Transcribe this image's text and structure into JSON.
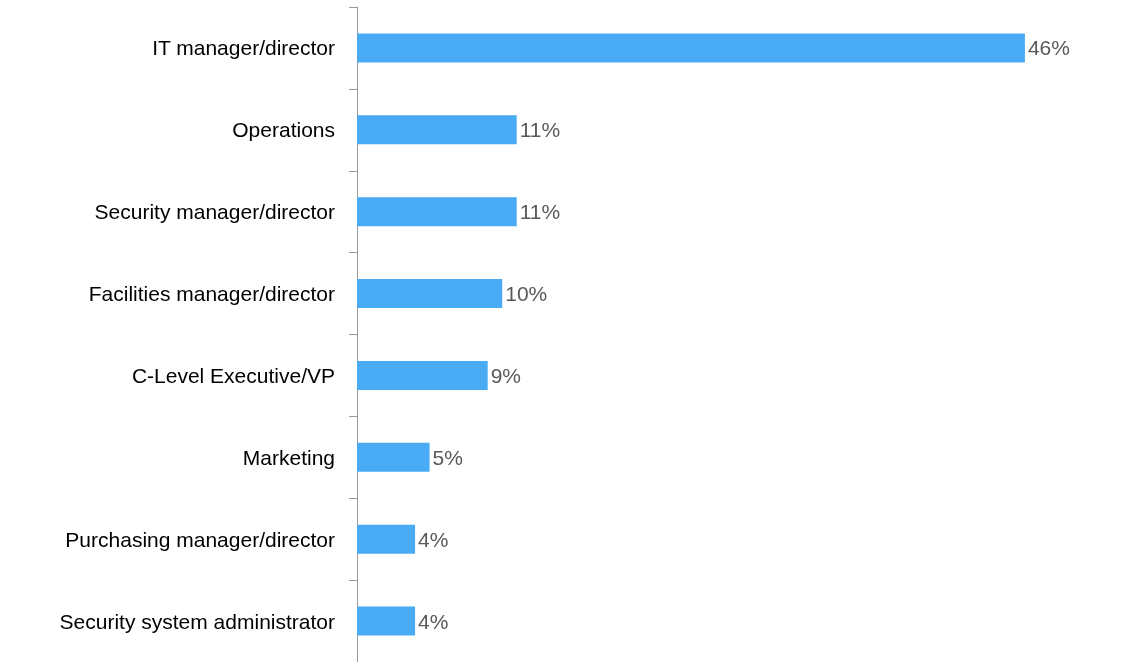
{
  "chart_data": {
    "type": "bar",
    "orientation": "horizontal",
    "categories": [
      "IT manager/director",
      "Operations",
      "Security manager/director",
      "Facilities manager/director",
      "C-Level Executive/VP",
      "Marketing",
      "Purchasing manager/director",
      "Security system administrator"
    ],
    "values": [
      46,
      11,
      11,
      10,
      9,
      5,
      4,
      4
    ],
    "value_labels": [
      "46%",
      "11%",
      "11%",
      "10%",
      "9%",
      "5%",
      "4%",
      "4%"
    ],
    "color": "#4aabf5"
  }
}
